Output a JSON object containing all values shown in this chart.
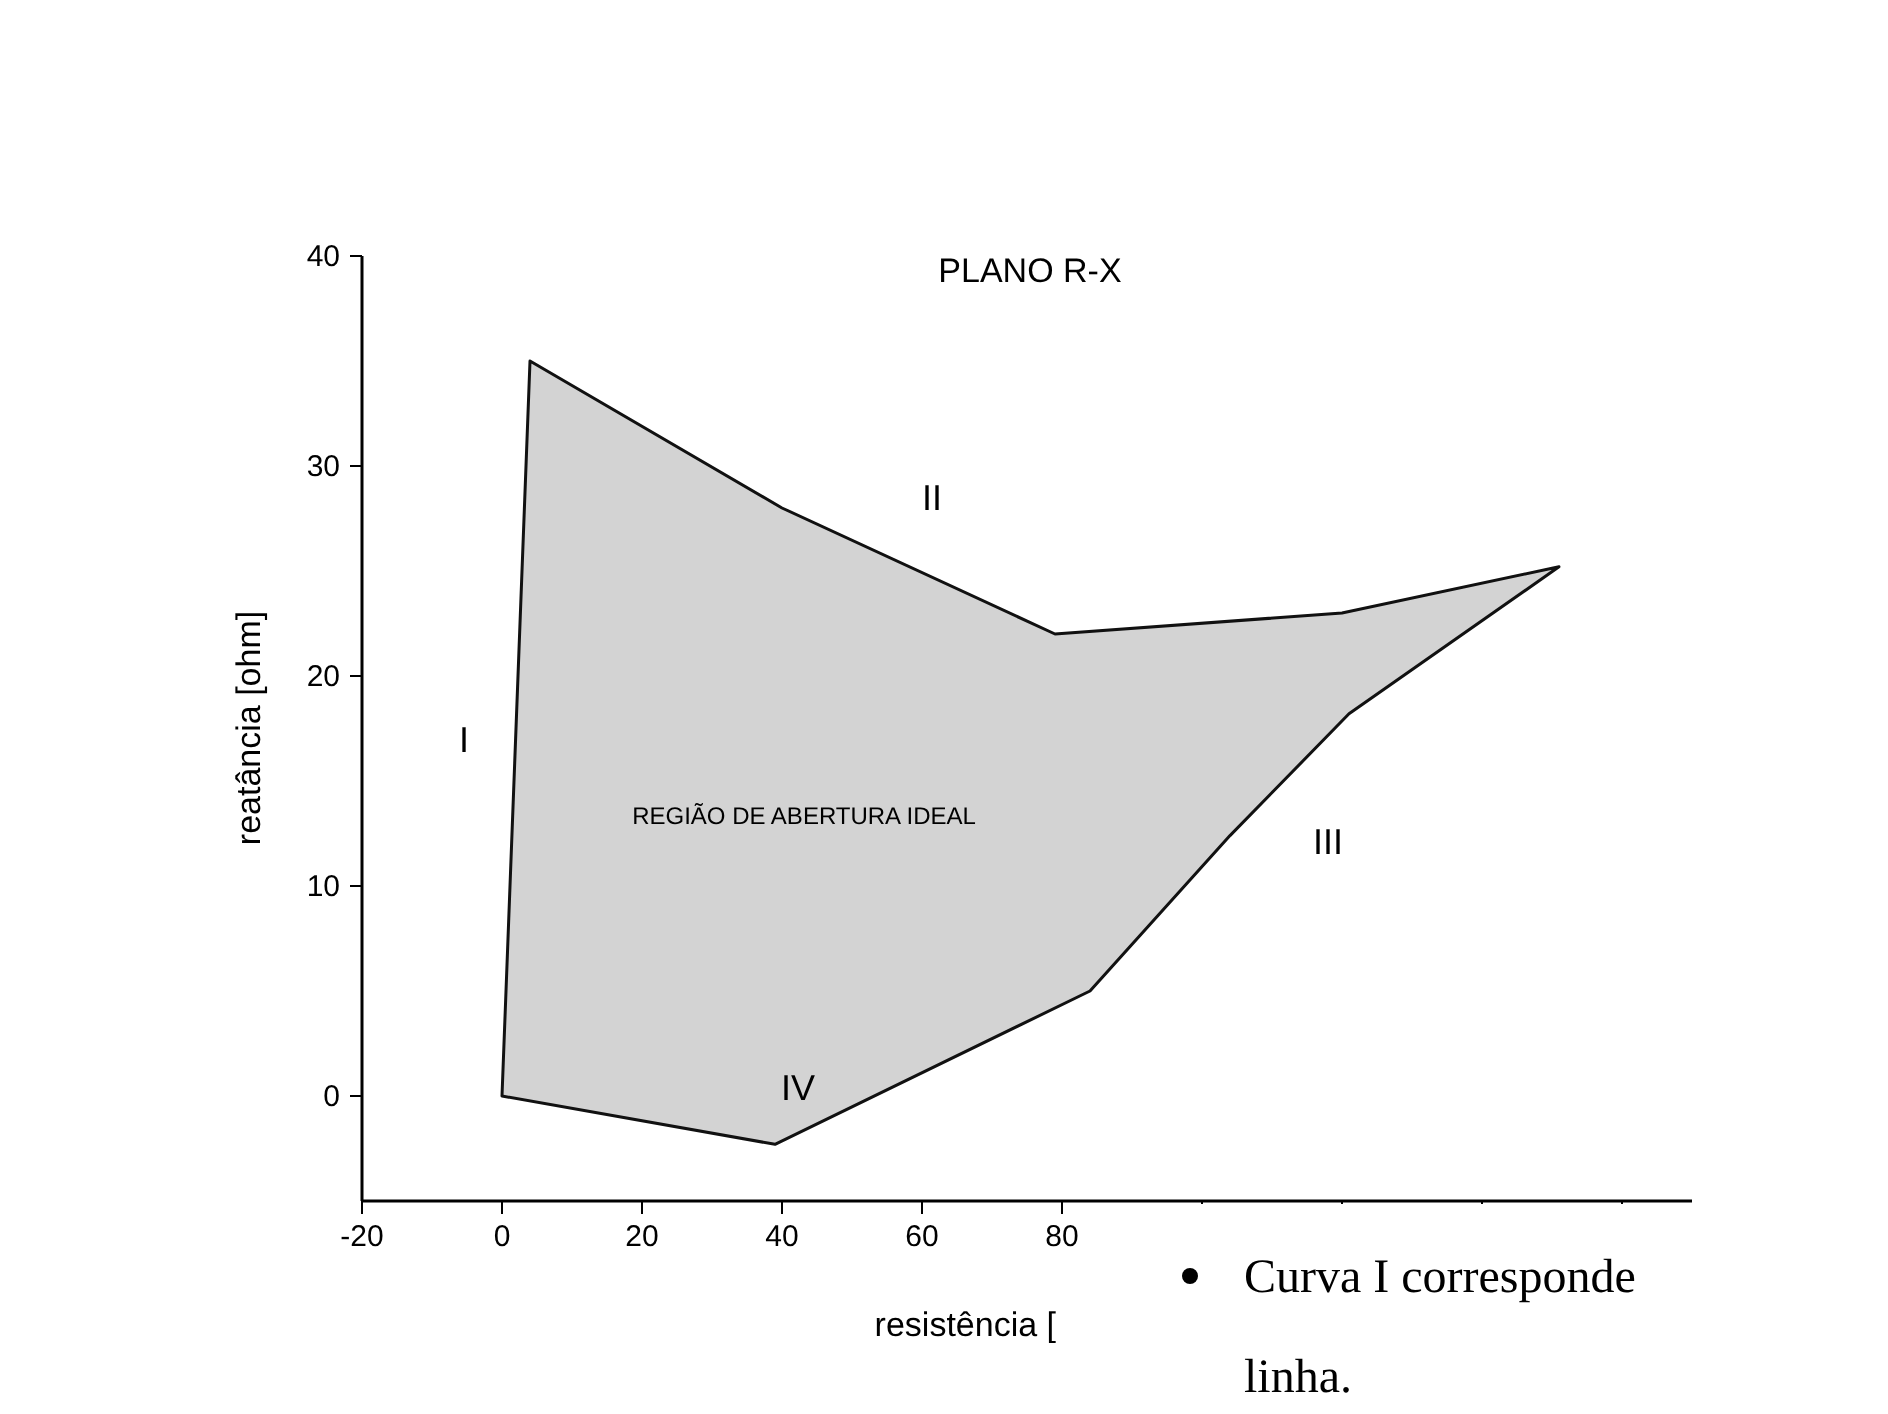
{
  "chart_data": {
    "type": "area",
    "title": "PLANO R-X",
    "xlabel": "resistência [",
    "ylabel": "reatância [ohm]",
    "x": [
      0,
      4,
      40,
      79,
      120,
      151,
      121,
      104,
      84,
      39,
      0
    ],
    "series": [
      {
        "color": "#d3d3d3",
        "values": [
          0,
          35,
          28,
          22,
          23,
          25.2,
          18.2,
          12.4,
          5,
          -2.3,
          0
        ]
      }
    ],
    "xlim": [
      -20,
      170
    ],
    "xticks": [
      -20,
      0,
      20,
      40,
      60,
      80,
      {
        "value": 100,
        "label": null
      },
      {
        "value": 120,
        "label": null
      },
      {
        "value": 140,
        "label": null
      },
      {
        "value": 160,
        "label": null
      }
    ],
    "ylim": [
      -5,
      40
    ],
    "yticks": [
      0,
      10,
      20,
      30,
      40
    ],
    "grid": false,
    "annotations": [
      "I",
      "II",
      "III",
      "IV",
      "REGIÃO DE ABERTURA IDEAL",
      "Curva I corresponde",
      "linha."
    ]
  }
}
